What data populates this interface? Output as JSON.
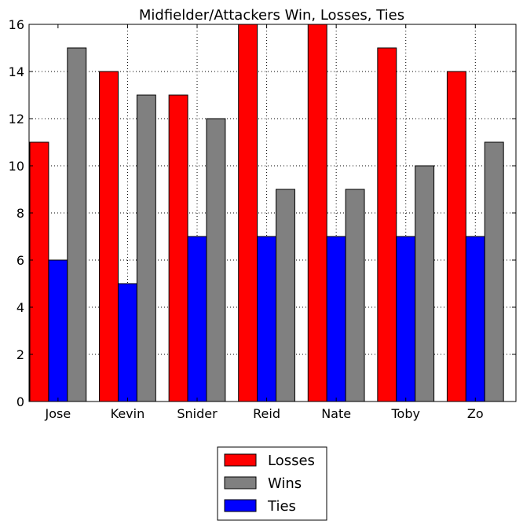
{
  "chart_data": {
    "type": "bar",
    "title": "Midfielder/Attackers Win, Losses, Ties",
    "xlabel": "",
    "ylabel": "",
    "categories": [
      "Jose",
      "Kevin",
      "Snider",
      "Reid",
      "Nate",
      "Toby",
      "Zo"
    ],
    "series": [
      {
        "name": "Losses",
        "color": "#ff0000",
        "values": [
          11,
          14,
          13,
          16,
          16,
          15,
          14
        ]
      },
      {
        "name": "Ties",
        "color": "#0000ff",
        "values": [
          6,
          5,
          7,
          7,
          7,
          7,
          7
        ]
      },
      {
        "name": "Wins",
        "color": "#808080",
        "values": [
          15,
          13,
          12,
          9,
          9,
          10,
          11
        ]
      }
    ],
    "legend_order": [
      "Losses",
      "Wins",
      "Ties"
    ],
    "ylim": [
      0,
      16
    ],
    "yticks": [
      0,
      2,
      4,
      6,
      8,
      10,
      12,
      14,
      16
    ],
    "grid": true,
    "legend_position": "bottom-center, outside plot"
  }
}
